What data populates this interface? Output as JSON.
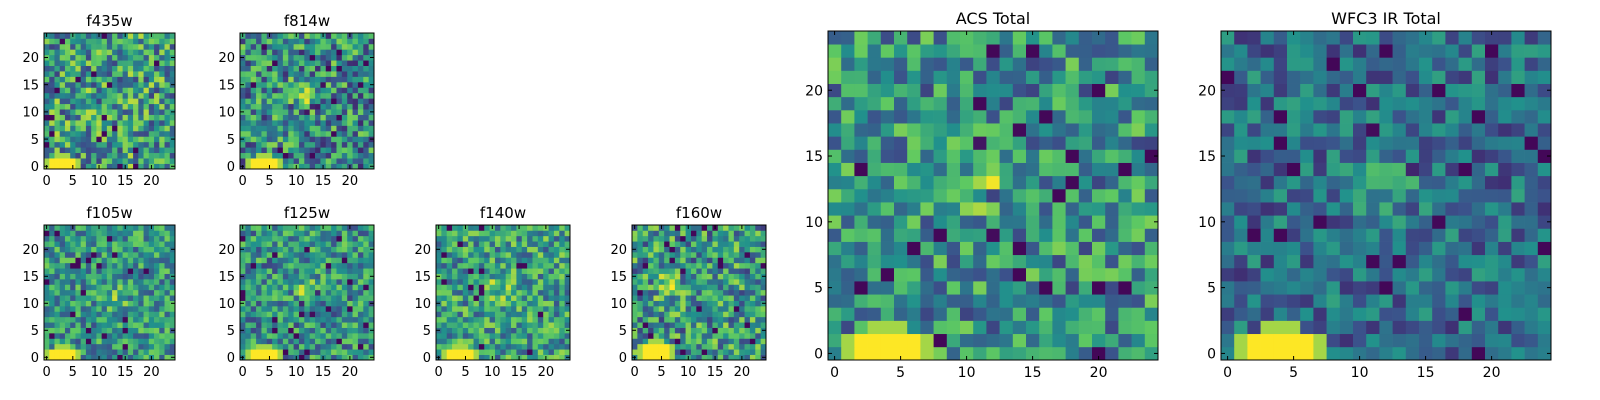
{
  "figure": {
    "colormap": [
      "#440154",
      "#3b528b",
      "#21918c",
      "#5ec962",
      "#fde725"
    ]
  },
  "chart_data": [
    {
      "type": "heatmap",
      "panel": "f435w",
      "title": "f435w",
      "shape": [
        25,
        25
      ],
      "xlim": [
        -0.5,
        24.5
      ],
      "ylim": [
        -0.5,
        24.5
      ],
      "xticks": [
        0,
        5,
        10,
        15,
        20
      ],
      "yticks": [
        0,
        5,
        10,
        15,
        20
      ],
      "bright_source": [
        3,
        0
      ],
      "noise_level": 0.55,
      "noise_spread": 0.35,
      "blob": null
    },
    {
      "type": "heatmap",
      "panel": "f814w",
      "title": "f814w",
      "shape": [
        25,
        25
      ],
      "xlim": [
        -0.5,
        24.5
      ],
      "ylim": [
        -0.5,
        24.5
      ],
      "xticks": [
        0,
        5,
        10,
        15,
        20
      ],
      "yticks": [
        0,
        5,
        10,
        15,
        20
      ],
      "bright_source": [
        4,
        0
      ],
      "noise_level": 0.48,
      "noise_spread": 0.36,
      "blob": [
        12,
        13
      ]
    },
    {
      "type": "heatmap",
      "panel": "f105w",
      "title": "f105w",
      "shape": [
        25,
        25
      ],
      "xlim": [
        -0.5,
        24.5
      ],
      "ylim": [
        -0.5,
        24.5
      ],
      "xticks": [
        0,
        5,
        10,
        15,
        20
      ],
      "yticks": [
        0,
        5,
        10,
        15,
        20
      ],
      "bright_source": [
        3,
        0
      ],
      "noise_level": 0.52,
      "noise_spread": 0.28,
      "blob": [
        13,
        11
      ]
    },
    {
      "type": "heatmap",
      "panel": "f125w",
      "title": "f125w",
      "shape": [
        25,
        25
      ],
      "xlim": [
        -0.5,
        24.5
      ],
      "ylim": [
        -0.5,
        24.5
      ],
      "xticks": [
        0,
        5,
        10,
        15,
        20
      ],
      "yticks": [
        0,
        5,
        10,
        15,
        20
      ],
      "bright_source": [
        4,
        0
      ],
      "noise_level": 0.5,
      "noise_spread": 0.3,
      "blob": [
        12,
        12
      ]
    },
    {
      "type": "heatmap",
      "panel": "f140w",
      "title": "f140w",
      "shape": [
        25,
        25
      ],
      "xlim": [
        -0.5,
        24.5
      ],
      "ylim": [
        -0.5,
        24.5
      ],
      "xticks": [
        0,
        5,
        10,
        15,
        20
      ],
      "yticks": [
        0,
        5,
        10,
        15,
        20
      ],
      "bright_source": [
        4,
        0
      ],
      "noise_level": 0.55,
      "noise_spread": 0.3,
      "blob": [
        12,
        13
      ]
    },
    {
      "type": "heatmap",
      "panel": "f160w",
      "title": "f160w",
      "shape": [
        25,
        25
      ],
      "xlim": [
        -0.5,
        24.5
      ],
      "ylim": [
        -0.5,
        24.5
      ],
      "xticks": [
        0,
        5,
        10,
        15,
        20
      ],
      "yticks": [
        0,
        5,
        10,
        15,
        20
      ],
      "bright_source": [
        4,
        1
      ],
      "noise_level": 0.52,
      "noise_spread": 0.34,
      "blob": [
        6,
        13
      ]
    },
    {
      "type": "heatmap",
      "panel": "acs_total",
      "title": "ACS Total",
      "shape": [
        25,
        25
      ],
      "xlim": [
        -0.5,
        24.5
      ],
      "ylim": [
        -0.5,
        24.5
      ],
      "xticks": [
        0,
        5,
        10,
        15,
        20
      ],
      "yticks": [
        0,
        5,
        10,
        15,
        20
      ],
      "bright_source": [
        4,
        0
      ],
      "noise_level": 0.5,
      "noise_spread": 0.3,
      "blob": [
        12,
        13
      ]
    },
    {
      "type": "heatmap",
      "panel": "wfc3_ir_total",
      "title": "WFC3 IR Total",
      "shape": [
        25,
        25
      ],
      "xlim": [
        -0.5,
        24.5
      ],
      "ylim": [
        -0.5,
        24.5
      ],
      "xticks": [
        0,
        5,
        10,
        15,
        20
      ],
      "yticks": [
        0,
        5,
        10,
        15,
        20
      ],
      "bright_source": [
        4,
        0
      ],
      "noise_level": 0.36,
      "noise_spread": 0.22,
      "blob": [
        12,
        13
      ]
    }
  ]
}
